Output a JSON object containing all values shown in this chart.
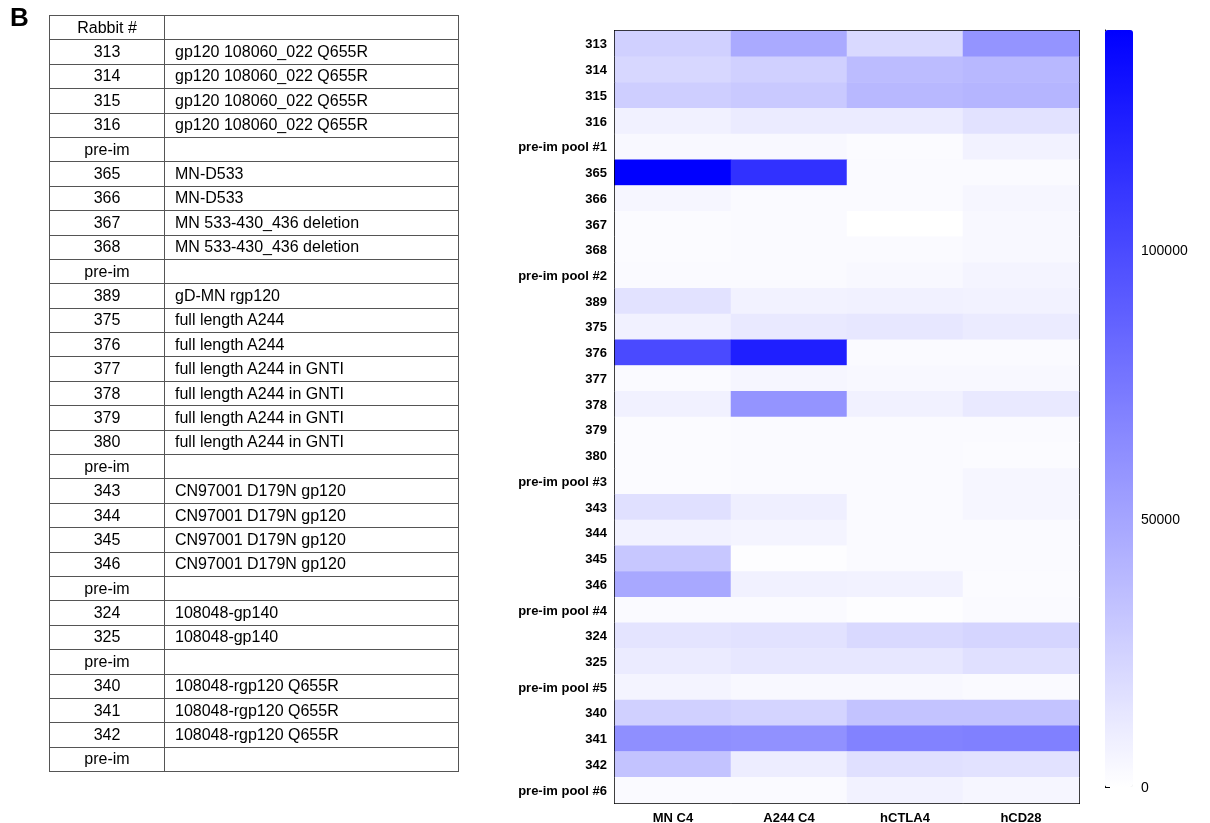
{
  "chart_data": [
    {
      "type": "other",
      "annotations": [
        "B"
      ],
      "categories": [
        "Rabbit #",
        null
      ],
      "y_categories": [
        "313",
        "314",
        "315",
        "316",
        "pre-im",
        "365",
        "366",
        "367",
        "368",
        "pre-im",
        "389",
        "375",
        "376",
        "377",
        "378",
        "379",
        "380",
        "pre-im",
        "343",
        "344",
        "345",
        "346",
        "pre-im",
        "324",
        "325",
        "pre-im",
        "340",
        "341",
        "342",
        "pre-im"
      ],
      "y2_categories": [
        "gp120 108060_022 Q655R",
        "gp120 108060_022 Q655R",
        "gp120 108060_022 Q655R",
        "gp120 108060_022 Q655R",
        null,
        "MN-D533",
        "MN-D533",
        "MN 533-430_436 deletion",
        "MN 533-430_436 deletion",
        null,
        "gD-MN rgp120",
        "full length A244",
        "full length A244",
        "full length A244 in GNTI",
        "full length A244 in GNTI",
        "full length A244 in GNTI",
        "full length A244 in GNTI",
        null,
        "CN97001 D179N gp120",
        "CN97001 D179N gp120",
        "CN97001 D179N gp120",
        "CN97001 D179N gp120",
        null,
        "108048-gp140",
        "108048-gp140",
        null,
        "108048-rgp120 Q655R",
        "108048-rgp120 Q655R",
        "108048-rgp120 Q655R",
        null
      ]
    },
    {
      "type": "heatmap",
      "categories": [
        "MN C4",
        "A244 C4",
        "hCTLA4",
        "hCD28"
      ],
      "y_categories": [
        "313",
        "314",
        "315",
        "316",
        "pre-im pool #1",
        "365",
        "366",
        "367",
        "368",
        "pre-im pool #2",
        "389",
        "375",
        "376",
        "377",
        "378",
        "379",
        "380",
        "pre-im pool #3",
        "343",
        "344",
        "345",
        "346",
        "pre-im pool #4",
        "324",
        "325",
        "pre-im pool #5",
        "340",
        "341",
        "342",
        "pre-im pool #6"
      ],
      "cells": [
        [
          26000,
          47000,
          21000,
          59000
        ],
        [
          22000,
          26000,
          37000,
          39000
        ],
        [
          27000,
          30000,
          39000,
          41000
        ],
        [
          8000,
          11000,
          11000,
          16000
        ],
        [
          4000,
          4000,
          2000,
          7000
        ],
        [
          141000,
          114000,
          3000,
          3000
        ],
        [
          5000,
          3000,
          3000,
          5000
        ],
        [
          2000,
          3000,
          0,
          4000
        ],
        [
          2000,
          3000,
          3000,
          4000
        ],
        [
          3000,
          3000,
          4000,
          6000
        ],
        [
          16000,
          7000,
          8000,
          7000
        ],
        [
          8000,
          12000,
          13000,
          11000
        ],
        [
          100000,
          124000,
          3000,
          3000
        ],
        [
          3000,
          5000,
          4000,
          4000
        ],
        [
          8000,
          59000,
          8000,
          12000
        ],
        [
          2000,
          3000,
          3000,
          3000
        ],
        [
          2000,
          3000,
          3000,
          2000
        ],
        [
          2000,
          3000,
          3000,
          5000
        ],
        [
          17000,
          9000,
          3000,
          5000
        ],
        [
          7000,
          6000,
          3000,
          3000
        ],
        [
          31000,
          1000,
          3000,
          3000
        ],
        [
          48000,
          8000,
          7000,
          2000
        ],
        [
          3000,
          3000,
          1000,
          3000
        ],
        [
          15000,
          16000,
          21000,
          23000
        ],
        [
          11000,
          13000,
          13000,
          17000
        ],
        [
          6000,
          4000,
          4000,
          3000
        ],
        [
          26000,
          24000,
          33000,
          33000
        ],
        [
          62000,
          61000,
          69000,
          70000
        ],
        [
          33000,
          10000,
          17000,
          16000
        ],
        [
          3000,
          3000,
          7000,
          5000
        ]
      ],
      "clim": [
        0,
        141000
      ],
      "cticks": [
        0,
        50000,
        100000
      ],
      "colors": [
        "#ffffff",
        "#0000ff"
      ]
    }
  ]
}
